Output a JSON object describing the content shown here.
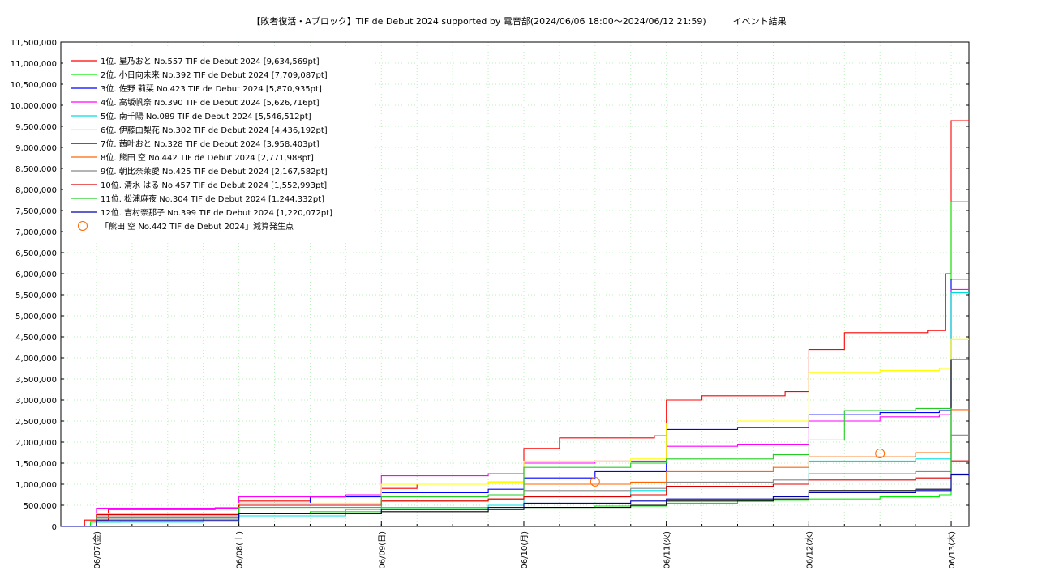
{
  "chart_data": {
    "type": "line",
    "title": "【敗者復活・Aブロック】TIF de Debut 2024 supported by 電音部(2024/06/06 18:00～2024/06/12 21:59)　　　イベント結果",
    "xlabel": "",
    "ylabel": "",
    "x_range": [
      "2024-06-06 18:00",
      "2024-06-13 03:00"
    ],
    "ylim": [
      0,
      11500000
    ],
    "grid": true,
    "legend_placement": "top-left",
    "y_tick_labels": [
      "0",
      "500,000",
      "1,000,000",
      "1,500,000",
      "2,000,000",
      "2,500,000",
      "3,000,000",
      "3,500,000",
      "4,000,000",
      "4,500,000",
      "5,000,000",
      "5,500,000",
      "6,000,000",
      "6,500,000",
      "7,000,000",
      "7,500,000",
      "8,000,000",
      "8,500,000",
      "9,000,000",
      "9,500,000",
      "10,000,000",
      "10,500,000",
      "11,000,000",
      "11,500,000"
    ],
    "x_tick_labels": [
      {
        "date": "2024-06-07 00:00",
        "label": "06/07(金)"
      },
      {
        "date": "2024-06-08 00:00",
        "label": "06/08(土)"
      },
      {
        "date": "2024-06-09 00:00",
        "label": "06/09(日)"
      },
      {
        "date": "2024-06-10 00:00",
        "label": "06/10(月)"
      },
      {
        "date": "2024-06-11 00:00",
        "label": "06/11(火)"
      },
      {
        "date": "2024-06-12 00:00",
        "label": "06/12(水)"
      },
      {
        "date": "2024-06-13 00:00",
        "label": "06/13(木)"
      }
    ],
    "series": [
      {
        "name": "1位. 星乃おと No.557 TIF de Debut 2024 [9,634,569pt]",
        "color": "#ff0000",
        "points": [
          [
            "2024-06-06 18:00",
            0
          ],
          [
            "2024-06-06 22:00",
            150000
          ],
          [
            "2024-06-07 02:00",
            400000
          ],
          [
            "2024-06-07 20:00",
            440000
          ],
          [
            "2024-06-08 00:00",
            600000
          ],
          [
            "2024-06-08 12:00",
            700000
          ],
          [
            "2024-06-08 18:00",
            750000
          ],
          [
            "2024-06-09 00:00",
            900000
          ],
          [
            "2024-06-09 06:00",
            1000000
          ],
          [
            "2024-06-09 18:00",
            1050000
          ],
          [
            "2024-06-10 00:00",
            1850000
          ],
          [
            "2024-06-10 06:00",
            2100000
          ],
          [
            "2024-06-10 22:00",
            2150000
          ],
          [
            "2024-06-11 00:00",
            3000000
          ],
          [
            "2024-06-11 06:00",
            3100000
          ],
          [
            "2024-06-11 20:00",
            3200000
          ],
          [
            "2024-06-12 00:00",
            4200000
          ],
          [
            "2024-06-12 06:00",
            4600000
          ],
          [
            "2024-06-12 20:00",
            4650000
          ],
          [
            "2024-06-12 23:00",
            6000000
          ],
          [
            "2024-06-13 00:00",
            9634569
          ],
          [
            "2024-06-13 03:00",
            9634569
          ]
        ]
      },
      {
        "name": "2位. 小日向未来 No.392 TIF de Debut 2024 [7,709,087pt]",
        "color": "#00ee00",
        "points": [
          [
            "2024-06-06 18:00",
            0
          ],
          [
            "2024-06-06 23:00",
            100000
          ],
          [
            "2024-06-07 04:00",
            120000
          ],
          [
            "2024-06-08 00:00",
            300000
          ],
          [
            "2024-06-08 12:00",
            350000
          ],
          [
            "2024-06-09 00:00",
            420000
          ],
          [
            "2024-06-09 18:00",
            450000
          ],
          [
            "2024-06-10 00:00",
            450000
          ],
          [
            "2024-06-10 12:00",
            480000
          ],
          [
            "2024-06-11 00:00",
            550000
          ],
          [
            "2024-06-11 12:00",
            620000
          ],
          [
            "2024-06-12 00:00",
            650000
          ],
          [
            "2024-06-12 12:00",
            700000
          ],
          [
            "2024-06-12 22:00",
            750000
          ],
          [
            "2024-06-13 00:00",
            7709087
          ],
          [
            "2024-06-13 03:00",
            7709087
          ]
        ]
      },
      {
        "name": "3位. 佐野 莉栞 No.423 TIF de Debut 2024 [5,870,935pt]",
        "color": "#0000ff",
        "points": [
          [
            "2024-06-06 18:00",
            0
          ],
          [
            "2024-06-07 00:00",
            200000
          ],
          [
            "2024-06-08 00:00",
            550000
          ],
          [
            "2024-06-08 12:00",
            700000
          ],
          [
            "2024-06-09 00:00",
            800000
          ],
          [
            "2024-06-09 18:00",
            880000
          ],
          [
            "2024-06-10 00:00",
            1150000
          ],
          [
            "2024-06-10 12:00",
            1300000
          ],
          [
            "2024-06-11 00:00",
            2300000
          ],
          [
            "2024-06-11 12:00",
            2350000
          ],
          [
            "2024-06-12 00:00",
            2650000
          ],
          [
            "2024-06-12 12:00",
            2700000
          ],
          [
            "2024-06-12 22:00",
            2750000
          ],
          [
            "2024-06-13 00:00",
            5870935
          ],
          [
            "2024-06-13 03:00",
            5870935
          ]
        ]
      },
      {
        "name": "4位. 高坂帆奈 No.390 TIF de Debut 2024 [5,626,716pt]",
        "color": "#ff00ff",
        "points": [
          [
            "2024-06-06 18:00",
            0
          ],
          [
            "2024-06-07 00:00",
            430000
          ],
          [
            "2024-06-08 00:00",
            700000
          ],
          [
            "2024-06-08 18:00",
            750000
          ],
          [
            "2024-06-09 00:00",
            1200000
          ],
          [
            "2024-06-09 18:00",
            1250000
          ],
          [
            "2024-06-10 00:00",
            1500000
          ],
          [
            "2024-06-10 12:00",
            1550000
          ],
          [
            "2024-06-11 00:00",
            1900000
          ],
          [
            "2024-06-11 12:00",
            1950000
          ],
          [
            "2024-06-12 00:00",
            2500000
          ],
          [
            "2024-06-12 12:00",
            2600000
          ],
          [
            "2024-06-12 22:00",
            2650000
          ],
          [
            "2024-06-13 00:00",
            5626716
          ],
          [
            "2024-06-13 03:00",
            5626716
          ]
        ]
      },
      {
        "name": "5位. 南千陽 No.089 TIF de Debut 2024 [5,546,512pt]",
        "color": "#00dddd",
        "points": [
          [
            "2024-06-06 18:00",
            0
          ],
          [
            "2024-06-07 00:00",
            100000
          ],
          [
            "2024-06-07 18:00",
            200000
          ],
          [
            "2024-06-08 00:00",
            250000
          ],
          [
            "2024-06-08 18:00",
            400000
          ],
          [
            "2024-06-09 00:00",
            450000
          ],
          [
            "2024-06-09 18:00",
            500000
          ],
          [
            "2024-06-10 00:00",
            700000
          ],
          [
            "2024-06-10 18:00",
            850000
          ],
          [
            "2024-06-11 00:00",
            950000
          ],
          [
            "2024-06-11 18:00",
            1000000
          ],
          [
            "2024-06-12 00:00",
            1550000
          ],
          [
            "2024-06-12 18:00",
            1600000
          ],
          [
            "2024-06-13 00:00",
            5546512
          ],
          [
            "2024-06-13 03:00",
            5546512
          ]
        ]
      },
      {
        "name": "6位. 伊藤由梨花 No.302 TIF de Debut 2024 [4,436,192pt]",
        "color": "#ffff00",
        "points": [
          [
            "2024-06-06 18:00",
            0
          ],
          [
            "2024-06-07 00:00",
            300000
          ],
          [
            "2024-06-08 00:00",
            550000
          ],
          [
            "2024-06-09 00:00",
            1000000
          ],
          [
            "2024-06-09 18:00",
            1050000
          ],
          [
            "2024-06-10 00:00",
            1550000
          ],
          [
            "2024-06-10 18:00",
            1600000
          ],
          [
            "2024-06-11 00:00",
            2450000
          ],
          [
            "2024-06-11 12:00",
            2500000
          ],
          [
            "2024-06-12 00:00",
            3650000
          ],
          [
            "2024-06-12 12:00",
            3700000
          ],
          [
            "2024-06-12 22:00",
            3750000
          ],
          [
            "2024-06-13 00:00",
            4436192
          ],
          [
            "2024-06-13 03:00",
            4436192
          ]
        ]
      },
      {
        "name": "7位. 茜叶おと No.328 TIF de Debut 2024 [3,958,403pt]",
        "color": "#000000",
        "points": [
          [
            "2024-06-06 18:00",
            0
          ],
          [
            "2024-06-07 00:00",
            200000
          ],
          [
            "2024-06-08 00:00",
            300000
          ],
          [
            "2024-06-09 00:00",
            350000
          ],
          [
            "2024-06-09 18:00",
            400000
          ],
          [
            "2024-06-10 00:00",
            450000
          ],
          [
            "2024-06-10 18:00",
            500000
          ],
          [
            "2024-06-11 00:00",
            600000
          ],
          [
            "2024-06-11 18:00",
            650000
          ],
          [
            "2024-06-12 00:00",
            850000
          ],
          [
            "2024-06-12 18:00",
            880000
          ],
          [
            "2024-06-13 00:00",
            3958403
          ],
          [
            "2024-06-13 03:00",
            3958403
          ]
        ]
      },
      {
        "name": "8位. 熊田 空 No.442 TIF de Debut 2024 [2,771,988pt]",
        "color": "#ff6600",
        "points": [
          [
            "2024-06-06 18:00",
            0
          ],
          [
            "2024-06-07 00:00",
            200000
          ],
          [
            "2024-06-08 00:00",
            500000
          ],
          [
            "2024-06-09 00:00",
            600000
          ],
          [
            "2024-06-09 18:00",
            650000
          ],
          [
            "2024-06-10 00:00",
            1000000
          ],
          [
            "2024-06-10 18:00",
            1050000
          ],
          [
            "2024-06-11 00:00",
            1300000
          ],
          [
            "2024-06-11 18:00",
            1400000
          ],
          [
            "2024-06-12 00:00",
            1650000
          ],
          [
            "2024-06-12 18:00",
            1750000
          ],
          [
            "2024-06-13 00:00",
            2771988
          ],
          [
            "2024-06-13 03:00",
            2771988
          ]
        ]
      },
      {
        "name": "9位. 朝比奈茉愛 No.425 TIF de Debut 2024 [2,167,582pt]",
        "color": "#888888",
        "points": [
          [
            "2024-06-06 18:00",
            0
          ],
          [
            "2024-06-07 00:00",
            250000
          ],
          [
            "2024-06-08 00:00",
            500000
          ],
          [
            "2024-06-09 00:00",
            700000
          ],
          [
            "2024-06-09 18:00",
            750000
          ],
          [
            "2024-06-10 00:00",
            850000
          ],
          [
            "2024-06-10 18:00",
            900000
          ],
          [
            "2024-06-11 00:00",
            1050000
          ],
          [
            "2024-06-11 18:00",
            1100000
          ],
          [
            "2024-06-12 00:00",
            1250000
          ],
          [
            "2024-06-12 18:00",
            1300000
          ],
          [
            "2024-06-13 00:00",
            2167582
          ],
          [
            "2024-06-13 03:00",
            2167582
          ]
        ]
      },
      {
        "name": "10位. 清水 はる No.457 TIF de Debut 2024 [1,552,993pt]",
        "color": "#dd0000",
        "points": [
          [
            "2024-06-06 18:00",
            0
          ],
          [
            "2024-06-07 00:00",
            280000
          ],
          [
            "2024-06-08 00:00",
            500000
          ],
          [
            "2024-06-09 00:00",
            600000
          ],
          [
            "2024-06-09 18:00",
            650000
          ],
          [
            "2024-06-10 00:00",
            700000
          ],
          [
            "2024-06-10 18:00",
            750000
          ],
          [
            "2024-06-11 00:00",
            950000
          ],
          [
            "2024-06-11 18:00",
            1000000
          ],
          [
            "2024-06-12 00:00",
            1100000
          ],
          [
            "2024-06-12 18:00",
            1150000
          ],
          [
            "2024-06-13 00:00",
            1552993
          ],
          [
            "2024-06-13 03:00",
            1552993
          ]
        ]
      },
      {
        "name": "11位. 松浦麻夜 No.304 TIF de Debut 2024 [1,244,332pt]",
        "color": "#22cc22",
        "points": [
          [
            "2024-06-06 18:00",
            0
          ],
          [
            "2024-06-07 00:00",
            200000
          ],
          [
            "2024-06-08 00:00",
            450000
          ],
          [
            "2024-06-09 00:00",
            700000
          ],
          [
            "2024-06-09 18:00",
            750000
          ],
          [
            "2024-06-10 00:00",
            1400000
          ],
          [
            "2024-06-10 18:00",
            1500000
          ],
          [
            "2024-06-11 00:00",
            1600000
          ],
          [
            "2024-06-11 18:00",
            1700000
          ],
          [
            "2024-06-12 00:00",
            2050000
          ],
          [
            "2024-06-12 06:00",
            2750000
          ],
          [
            "2024-06-12 18:00",
            2800000
          ],
          [
            "2024-06-13 00:00",
            1244332
          ],
          [
            "2024-06-13 03:00",
            1244332
          ]
        ]
      },
      {
        "name": "12位. 吉村奈那子 No.399 TIF de Debut 2024 [1,220,072pt]",
        "color": "#0000aa",
        "points": [
          [
            "2024-06-06 18:00",
            0
          ],
          [
            "2024-06-07 00:00",
            150000
          ],
          [
            "2024-06-08 00:00",
            300000
          ],
          [
            "2024-06-09 00:00",
            400000
          ],
          [
            "2024-06-09 18:00",
            450000
          ],
          [
            "2024-06-10 00:00",
            550000
          ],
          [
            "2024-06-10 18:00",
            600000
          ],
          [
            "2024-06-11 00:00",
            650000
          ],
          [
            "2024-06-11 18:00",
            700000
          ],
          [
            "2024-06-12 00:00",
            800000
          ],
          [
            "2024-06-12 18:00",
            850000
          ],
          [
            "2024-06-13 00:00",
            1220072
          ],
          [
            "2024-06-13 03:00",
            1220072
          ]
        ]
      }
    ],
    "annotations": {
      "label": "「熊田 空 No.442 TIF de Debut 2024」減算発生点",
      "color": "#ff6600",
      "points": [
        [
          "2024-06-10 12:00",
          1060000
        ],
        [
          "2024-06-12 12:00",
          1730000
        ]
      ]
    }
  }
}
